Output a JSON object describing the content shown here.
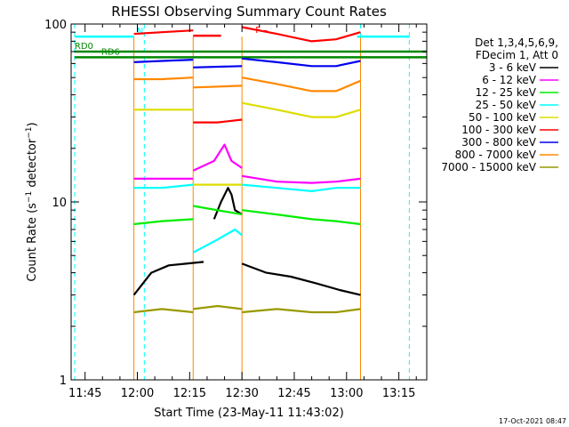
{
  "chart_data": {
    "type": "line",
    "title": "RHESSI Observing Summary Count Rates",
    "xlabel": "Start Time (23-May-11 11:43:02)",
    "ylabel": "Count Rate (s⁻¹ detector⁻¹)",
    "ylabel_parts": {
      "a": "Count Rate (s",
      "sup1": "−1",
      "b": " detector",
      "sup2": "−1",
      "c": ")"
    },
    "y_scale": "log",
    "ylim": [
      1,
      100
    ],
    "xlim": [
      "11:41",
      "13:23"
    ],
    "x_ticks": [
      "11:45",
      "12:00",
      "12:15",
      "12:30",
      "12:45",
      "13:00",
      "13:15"
    ],
    "y_ticks": [
      "1",
      "10",
      "100"
    ],
    "legend_header": [
      "Det 1,3,4,5,6,9,",
      "FDecim 1, Att 0"
    ],
    "legend_placement": "right",
    "series": [
      {
        "name": "3 - 6 keV",
        "color": "#000000",
        "segments": [
          {
            "x": [
              "11:59",
              "12:04",
              "12:09",
              "12:14",
              "12:19"
            ],
            "y": [
              3.0,
              4.0,
              4.4,
              4.5,
              4.6
            ]
          },
          {
            "x": [
              "12:22",
              "12:24",
              "12:26",
              "12:27",
              "12:28",
              "12:30"
            ],
            "y": [
              8.0,
              10.0,
              12.0,
              11.0,
              9.0,
              8.5
            ]
          },
          {
            "x": [
              "12:30",
              "12:37",
              "12:44",
              "12:51",
              "12:58",
              "13:04"
            ],
            "y": [
              4.5,
              4.0,
              3.8,
              3.5,
              3.2,
              3.0
            ]
          }
        ]
      },
      {
        "name": "6 - 12 keV",
        "color": "#ff00ff",
        "segments": [
          {
            "x": [
              "11:59",
              "12:07",
              "12:16"
            ],
            "y": [
              13.5,
              13.5,
              13.5
            ]
          },
          {
            "x": [
              "12:16",
              "12:22",
              "12:25",
              "12:27",
              "12:30"
            ],
            "y": [
              15.0,
              17.0,
              21.0,
              17.0,
              15.5
            ]
          },
          {
            "x": [
              "12:30",
              "12:40",
              "12:50",
              "12:57",
              "13:04"
            ],
            "y": [
              14.0,
              13.0,
              12.8,
              13.0,
              13.5
            ]
          }
        ]
      },
      {
        "name": "12 - 25 keV",
        "color": "#00ee00",
        "segments": [
          {
            "x": [
              "11:59",
              "12:07",
              "12:16"
            ],
            "y": [
              7.5,
              7.8,
              8.0
            ]
          },
          {
            "x": [
              "12:16",
              "12:30"
            ],
            "y": [
              9.5,
              8.5
            ]
          },
          {
            "x": [
              "12:30",
              "12:40",
              "12:50",
              "12:57",
              "13:04"
            ],
            "y": [
              9.0,
              8.5,
              8.0,
              7.8,
              7.5
            ]
          }
        ]
      },
      {
        "name": "25 - 50 keV",
        "color": "#00ffff",
        "segments": [
          {
            "x": [
              "11:59",
              "12:07",
              "12:16"
            ],
            "y": [
              12.0,
              12.0,
              12.5
            ]
          },
          {
            "x": [
              "12:16",
              "12:22",
              "12:28",
              "12:30"
            ],
            "y": [
              5.2,
              6.0,
              7.0,
              6.5
            ]
          },
          {
            "x": [
              "12:30",
              "12:40",
              "12:50",
              "12:57",
              "13:04"
            ],
            "y": [
              12.5,
              12.0,
              11.5,
              12.0,
              12.0
            ]
          }
        ]
      },
      {
        "name": "50 - 100 keV",
        "color": "#dddd00",
        "segments": [
          {
            "x": [
              "11:59",
              "12:07",
              "12:16"
            ],
            "y": [
              33.0,
              33.0,
              33.0
            ]
          },
          {
            "x": [
              "12:16",
              "12:30"
            ],
            "y": [
              12.5,
              12.5
            ]
          },
          {
            "x": [
              "12:30",
              "12:40",
              "12:50",
              "12:57",
              "13:04"
            ],
            "y": [
              36.0,
              33.0,
              30.0,
              30.0,
              33.0
            ]
          }
        ]
      },
      {
        "name": "100 - 300 keV",
        "color": "#ff0000",
        "segments": [
          {
            "x": [
              "11:59",
              "12:07",
              "12:16"
            ],
            "y": [
              88.0,
              90.0,
              92.0
            ]
          },
          {
            "x": [
              "12:16",
              "12:23",
              "12:30"
            ],
            "y": [
              28.0,
              28.0,
              29.0
            ]
          },
          {
            "x": [
              "12:30",
              "12:40",
              "12:50",
              "12:57",
              "13:04"
            ],
            "y": [
              96.0,
              88.0,
              80.0,
              82.0,
              90.0
            ]
          }
        ]
      },
      {
        "name": "300 - 800 keV",
        "color": "#0000ee",
        "segments": [
          {
            "x": [
              "11:59",
              "12:07",
              "12:16"
            ],
            "y": [
              61.0,
              62.0,
              63.0
            ]
          },
          {
            "x": [
              "12:16",
              "12:30"
            ],
            "y": [
              57.0,
              58.0
            ]
          },
          {
            "x": [
              "12:30",
              "12:40",
              "12:50",
              "12:57",
              "13:04"
            ],
            "y": [
              64.0,
              61.0,
              58.0,
              58.0,
              62.0
            ]
          }
        ]
      },
      {
        "name": "800 - 7000 keV",
        "color": "#ff8800",
        "segments": [
          {
            "x": [
              "11:59",
              "12:07",
              "12:16"
            ],
            "y": [
              49.0,
              49.0,
              50.0
            ]
          },
          {
            "x": [
              "12:16",
              "12:30"
            ],
            "y": [
              44.0,
              45.0
            ]
          },
          {
            "x": [
              "12:30",
              "12:40",
              "12:50",
              "12:57",
              "13:04"
            ],
            "y": [
              50.0,
              46.0,
              42.0,
              42.0,
              48.0
            ]
          }
        ]
      },
      {
        "name": "7000 - 15000 keV",
        "color": "#999900",
        "segments": [
          {
            "x": [
              "11:59",
              "12:07",
              "12:16"
            ],
            "y": [
              2.4,
              2.5,
              2.4
            ]
          },
          {
            "x": [
              "12:16",
              "12:23",
              "12:30"
            ],
            "y": [
              2.5,
              2.6,
              2.5
            ]
          },
          {
            "x": [
              "12:30",
              "12:40",
              "12:50",
              "12:57",
              "13:04"
            ],
            "y": [
              2.4,
              2.5,
              2.4,
              2.4,
              2.5
            ]
          }
        ]
      }
    ],
    "flags": [
      {
        "label": "N",
        "color": "#00ffff",
        "x": [
          "11:42",
          "11:59"
        ],
        "y": 85
      },
      {
        "label": "",
        "color": "#00ffff",
        "x": [
          "13:03",
          "13:18"
        ],
        "y": 85
      },
      {
        "label": "F –",
        "color": "#ff0000",
        "x": [
          "12:16",
          "12:24"
        ],
        "y": 86
      },
      {
        "label": "RD0",
        "color": "#008800",
        "x": [
          "11:42",
          "13:23"
        ],
        "y": 70
      },
      {
        "label": "RD6",
        "color": "#008800",
        "x": [
          "11:42",
          "13:23"
        ],
        "y": 65
      }
    ],
    "markers": {
      "cyan_dashed": [
        "11:42",
        "12:02",
        "13:04",
        "13:18"
      ],
      "orange_solid": [
        "11:59",
        "12:16",
        "12:30",
        "13:04"
      ]
    }
  },
  "footer_timestamp": "17-Oct-2021 08:47"
}
